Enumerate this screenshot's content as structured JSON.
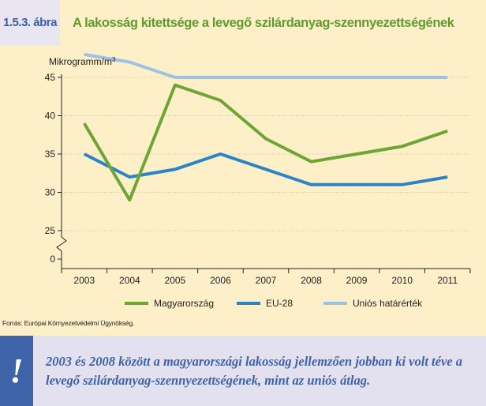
{
  "header": {
    "figure_number": "1.5.3. ábra",
    "title": "A lakosság kitettsége a levegő szilárdanyag-szennyezettségének"
  },
  "chart_data": {
    "type": "line",
    "ylabel": "Mikrogramm/m",
    "ylabel_superscript": "3",
    "categories": [
      "2003",
      "2004",
      "2005",
      "2006",
      "2007",
      "2008",
      "2009",
      "2010",
      "2011"
    ],
    "y_ticks": [
      "0",
      "25",
      "30",
      "35",
      "40",
      "45"
    ],
    "ylim": [
      25,
      45
    ],
    "axis_break": true,
    "grid": "horizontal dotted",
    "legend_position": "bottom",
    "series": [
      {
        "name": "Magyarország",
        "color": "#6fa534",
        "values": [
          39,
          29,
          44,
          42,
          37,
          34,
          35,
          36,
          38
        ]
      },
      {
        "name": "EU-28",
        "color": "#2b85c5",
        "values": [
          35,
          32,
          33,
          35,
          33,
          31,
          31,
          31,
          32
        ]
      },
      {
        "name": "Uniós határérték",
        "color": "#9cc3e6",
        "values": [
          48,
          47,
          45,
          45,
          45,
          45,
          45,
          45,
          45
        ]
      }
    ]
  },
  "source": "Forrás: Európai Környezetvédelmi Ügynökség.",
  "callout": {
    "icon": "exclamation-icon",
    "text": "2003 és 2008 között a magyarországi lakosság jellemzően jobban ki volt téve a levegő szilárdanyag-szennyezettségének, mint az uniós átlag."
  }
}
